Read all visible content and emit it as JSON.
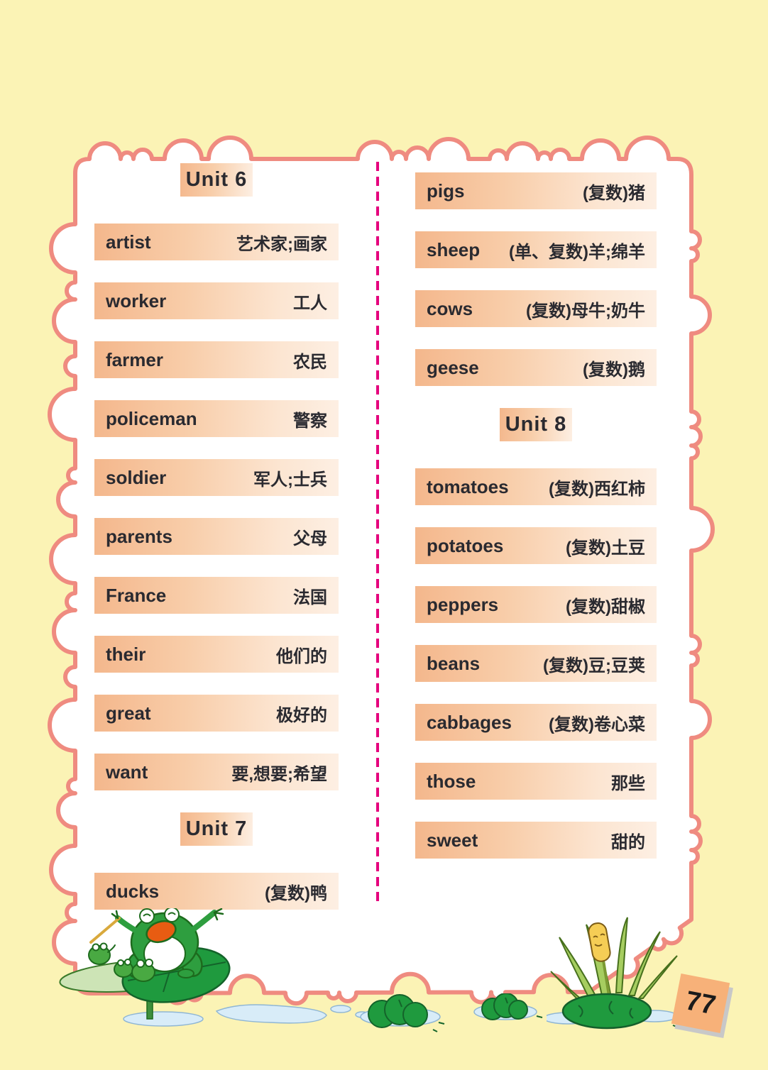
{
  "page": {
    "number": "77"
  },
  "colors": {
    "page_background": "#FBF3B5",
    "panel_background": "#FFFFFF",
    "panel_border": "#EF8B80",
    "bar_gradient_start": "#F4B78C",
    "bar_gradient_end": "#FDEFE3",
    "divider": "#E5007D",
    "text": "#2A2A30",
    "page_card": "#F7B179"
  },
  "columns": {
    "left": {
      "items": [
        {
          "type": "header",
          "label": "Unit 6"
        },
        {
          "type": "word",
          "word": "artist",
          "meaning": "艺术家;画家"
        },
        {
          "type": "word",
          "word": "worker",
          "meaning": "工人"
        },
        {
          "type": "word",
          "word": "farmer",
          "meaning": "农民"
        },
        {
          "type": "word",
          "word": "policeman",
          "meaning": "警察"
        },
        {
          "type": "word",
          "word": "soldier",
          "meaning": "军人;士兵"
        },
        {
          "type": "word",
          "word": "parents",
          "meaning": "父母"
        },
        {
          "type": "word",
          "word": "France",
          "meaning": "法国"
        },
        {
          "type": "word",
          "word": "their",
          "meaning": "他们的"
        },
        {
          "type": "word",
          "word": "great",
          "meaning": "极好的"
        },
        {
          "type": "word",
          "word": "want",
          "meaning": "要,想要;希望"
        },
        {
          "type": "header",
          "label": "Unit 7"
        },
        {
          "type": "word",
          "word": "ducks",
          "meaning": "(复数)鸭"
        }
      ]
    },
    "right": {
      "items": [
        {
          "type": "word",
          "word": "pigs",
          "meaning": "(复数)猪"
        },
        {
          "type": "word",
          "word": "sheep",
          "meaning": "(单、复数)羊;绵羊"
        },
        {
          "type": "word",
          "word": "cows",
          "meaning": "(复数)母牛;奶牛"
        },
        {
          "type": "word",
          "word": "geese",
          "meaning": "(复数)鹅"
        },
        {
          "type": "header",
          "label": "Unit 8"
        },
        {
          "type": "word",
          "word": "tomatoes",
          "meaning": "(复数)西红柿"
        },
        {
          "type": "word",
          "word": "potatoes",
          "meaning": "(复数)土豆"
        },
        {
          "type": "word",
          "word": "peppers",
          "meaning": "(复数)甜椒"
        },
        {
          "type": "word",
          "word": "beans",
          "meaning": "(复数)豆;豆荚"
        },
        {
          "type": "word",
          "word": "cabbages",
          "meaning": "(复数)卷心菜"
        },
        {
          "type": "word",
          "word": "those",
          "meaning": "那些"
        },
        {
          "type": "word",
          "word": "sweet",
          "meaning": "甜的"
        }
      ]
    }
  }
}
